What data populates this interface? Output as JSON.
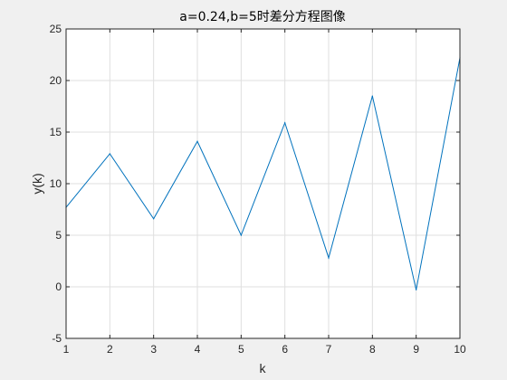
{
  "chart_data": {
    "type": "line",
    "title": "a=0.24,b=5时差分方程图像",
    "xlabel": "k",
    "ylabel": "y(k)",
    "xlim": [
      1,
      10
    ],
    "ylim": [
      -5,
      25
    ],
    "xticks": [
      1,
      2,
      3,
      4,
      5,
      6,
      7,
      8,
      9,
      10
    ],
    "yticks": [
      -5,
      0,
      5,
      10,
      15,
      20,
      25
    ],
    "grid": true,
    "series": [
      {
        "x": [
          1,
          2,
          3,
          4,
          5,
          6,
          7,
          8,
          9,
          10
        ],
        "values": [
          7.7,
          12.9,
          6.6,
          14.1,
          5.0,
          15.9,
          2.8,
          18.5,
          -0.3,
          22.2
        ],
        "color": "#0072bd"
      }
    ]
  }
}
